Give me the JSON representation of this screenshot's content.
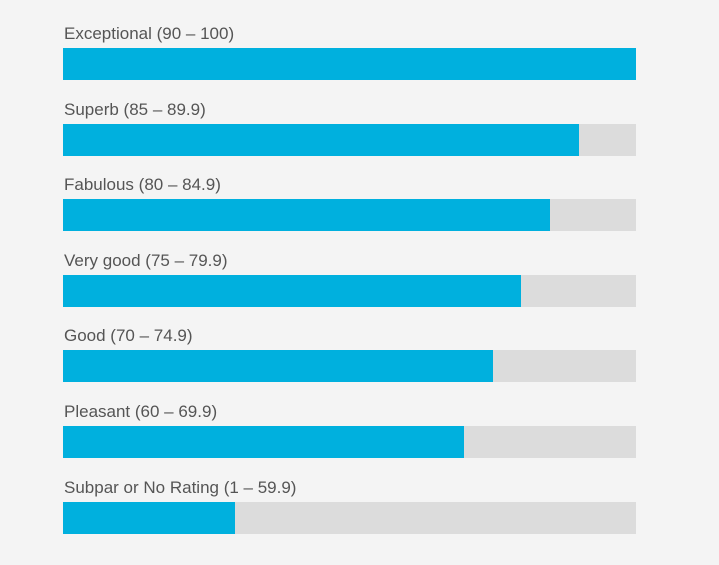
{
  "chart_data": {
    "type": "bar",
    "orientation": "horizontal",
    "categories": [
      "Exceptional (90 – 100)",
      "Superb (85 – 89.9)",
      "Fabulous (80 – 84.9)",
      "Very good (75 – 79.9)",
      "Good (70 – 74.9)",
      "Pleasant (60 – 69.9)",
      "Subpar or No Rating (1 – 59.9)"
    ],
    "values": [
      100,
      90,
      85,
      80,
      75,
      70,
      30
    ],
    "xlim": [
      0,
      100
    ],
    "grid": false,
    "legend": "none",
    "colors": {
      "fill": "#00b0de",
      "track": "#dcdcdc",
      "background": "#f4f4f4",
      "label": "#555555"
    }
  }
}
